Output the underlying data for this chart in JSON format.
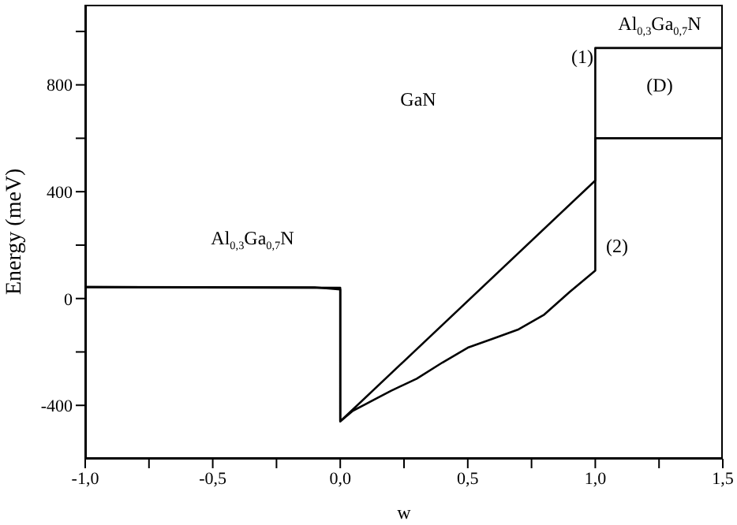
{
  "chart_data": {
    "type": "line",
    "xlabel": "w",
    "ylabel": "Energy (meV)",
    "xlim": [
      -1,
      1.5
    ],
    "ylim": [
      -600,
      1100
    ],
    "xticks": [
      {
        "value": -1,
        "label": "-1,0"
      },
      {
        "value": -0.75,
        "label": null
      },
      {
        "value": -0.5,
        "label": "-0,5"
      },
      {
        "value": -0.25,
        "label": null
      },
      {
        "value": 0,
        "label": "0,0"
      },
      {
        "value": 0.25,
        "label": null
      },
      {
        "value": 0.5,
        "label": "0,5"
      },
      {
        "value": 0.75,
        "label": null
      },
      {
        "value": 1,
        "label": "1,0"
      },
      {
        "value": 1.25,
        "label": null
      },
      {
        "value": 1.5,
        "label": "1,5"
      }
    ],
    "yticks": [
      {
        "value": -400,
        "label": "-400"
      },
      {
        "value": -200,
        "label": null
      },
      {
        "value": 0,
        "label": "0"
      },
      {
        "value": 200,
        "label": null
      },
      {
        "value": 400,
        "label": "400"
      },
      {
        "value": 600,
        "label": null
      },
      {
        "value": 800,
        "label": "800"
      },
      {
        "value": 1000,
        "label": null
      }
    ],
    "grid": false,
    "marker": "none",
    "line_style": "solid",
    "series": [
      {
        "color": "#000000",
        "x": [
          -1,
          0,
          0,
          1,
          1,
          1.5
        ],
        "values": [
          43,
          40,
          -460,
          442,
          938,
          938
        ]
      },
      {
        "color": "#000000",
        "x": [
          -1,
          -0.1,
          0,
          0,
          0.05,
          0.1,
          0.2,
          0.3,
          0.4,
          0.5,
          0.6,
          0.7,
          0.8,
          0.9,
          1,
          1,
          1.5
        ],
        "values": [
          43,
          42,
          34,
          -460,
          -420,
          -395,
          -345,
          -300,
          -240,
          -184,
          -150,
          -115,
          -60,
          25,
          105,
          600,
          600
        ]
      }
    ],
    "annotations": [
      "Al$_{0,3}$Ga$_{0,7}$N",
      "GaN",
      "Al$_{0,3}$Ga$_{0,7}$N",
      "(1)",
      "(D)",
      "(2)"
    ]
  }
}
